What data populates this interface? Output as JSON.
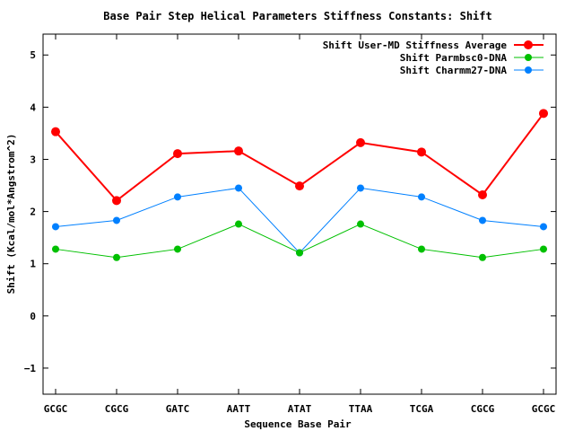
{
  "chart_data": {
    "type": "line",
    "title": "Base Pair Step Helical Parameters Stiffness Constants: Shift",
    "xlabel": "Sequence Base Pair",
    "ylabel": "Shift (Kcal/mol*Angstrom^2)",
    "categories": [
      "GCGC",
      "CGCG",
      "GATC",
      "AATT",
      "ATAT",
      "TTAA",
      "TCGA",
      "CGCG",
      "GCGC"
    ],
    "ylim": [
      -1.5,
      5.4
    ],
    "yticks": [
      -1,
      0,
      1,
      2,
      3,
      4,
      5
    ],
    "grid": false,
    "legend_position": "top-right",
    "series": [
      {
        "name": "Shift User-MD Stiffness Average",
        "color": "#ff0000",
        "values": [
          3.53,
          2.21,
          3.11,
          3.16,
          2.49,
          3.32,
          3.14,
          2.32,
          3.88
        ]
      },
      {
        "name": "Shift Parmbsc0-DNA",
        "color": "#00c000",
        "values": [
          1.28,
          1.12,
          1.28,
          1.76,
          1.21,
          1.76,
          1.28,
          1.12,
          1.28
        ]
      },
      {
        "name": "Shift Charmm27-DNA",
        "color": "#0080ff",
        "values": [
          1.71,
          1.83,
          2.28,
          2.45,
          1.21,
          2.45,
          2.28,
          1.83,
          1.71
        ]
      }
    ]
  }
}
